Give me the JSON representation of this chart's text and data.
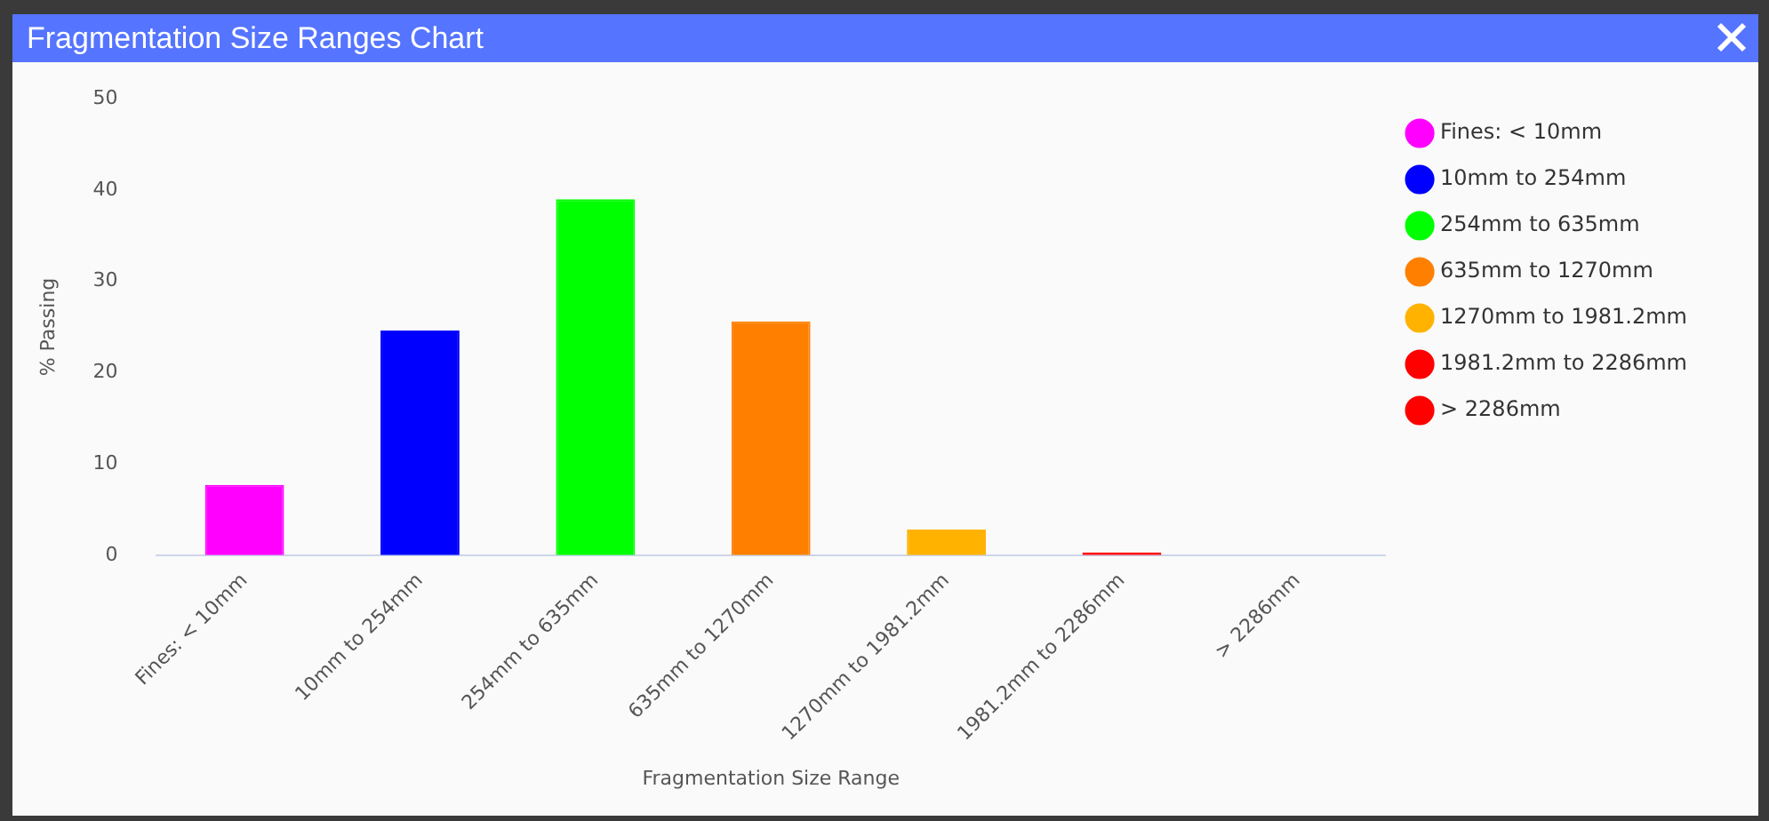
{
  "chart_data": {
    "type": "bar",
    "title": "Fragmentation Size Ranges Chart",
    "xlabel": "Fragmentation Size Range",
    "ylabel": "% Passing",
    "categories": [
      "Fines: < 10mm",
      "10mm to 254mm",
      "254mm to 635mm",
      "635mm to 1270mm",
      "1270mm to 1981.2mm",
      "1981.2mm to 2286mm",
      "> 2286mm"
    ],
    "series": [
      {
        "name": "Fines: < 10mm",
        "color": "#ff00ff",
        "values": [
          7.7,
          null,
          null,
          null,
          null,
          null,
          null
        ]
      },
      {
        "name": "10mm to 254mm",
        "color": "#0000ff",
        "values": [
          null,
          24.6,
          null,
          null,
          null,
          null,
          null
        ]
      },
      {
        "name": "254mm to 635mm",
        "color": "#00ff00",
        "values": [
          null,
          null,
          39,
          null,
          null,
          null,
          null
        ]
      },
      {
        "name": "635mm to 1270mm",
        "color": "#ff8000",
        "values": [
          null,
          null,
          null,
          25.6,
          null,
          null,
          null
        ]
      },
      {
        "name": "1270mm to 1981.2mm",
        "color": "#ffb300",
        "values": [
          null,
          null,
          null,
          null,
          2.8,
          null,
          null
        ]
      },
      {
        "name": "1981.2mm to 2286mm",
        "color": "#ff0000",
        "values": [
          null,
          null,
          null,
          null,
          null,
          0.3,
          null
        ]
      },
      {
        "name": "> 2286mm",
        "color": "#ff0000",
        "values": [
          null,
          null,
          null,
          null,
          null,
          null,
          0
        ]
      }
    ],
    "ylim": [
      0,
      50
    ],
    "yticks": [
      0,
      10,
      20,
      30,
      40,
      50
    ],
    "grid": false,
    "legend": "top right"
  }
}
